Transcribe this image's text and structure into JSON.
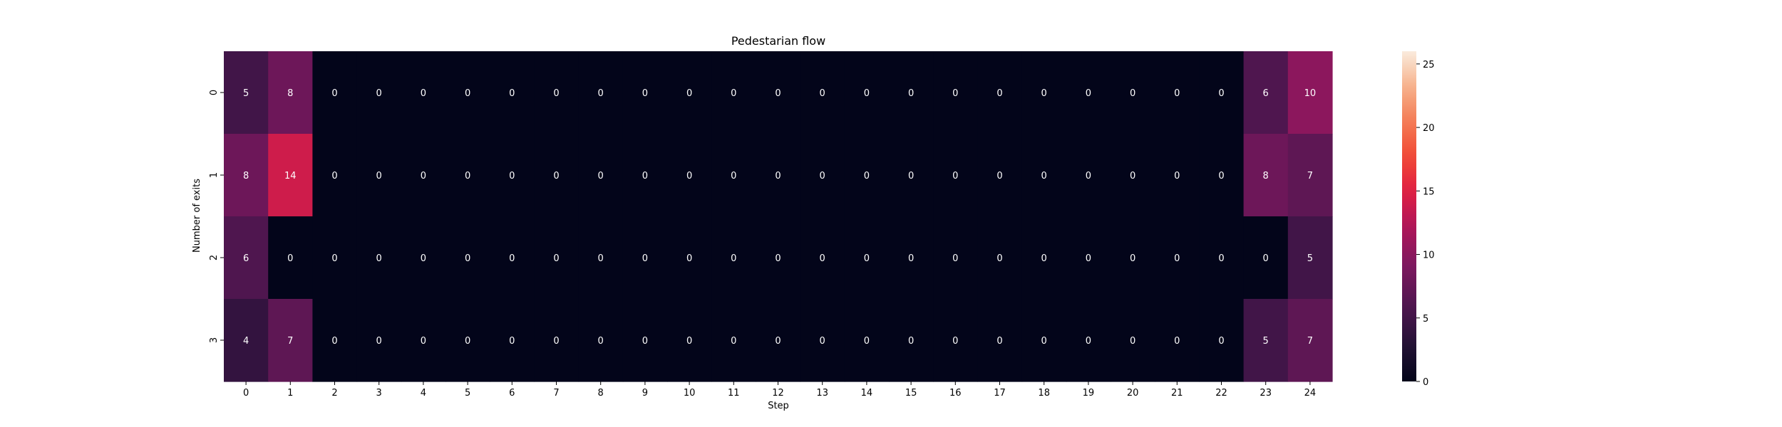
{
  "chart_data": {
    "type": "heatmap",
    "title": "Pedestarian flow",
    "xlabel": "Step",
    "ylabel": "Number of exits",
    "x_categories": [
      "0",
      "1",
      "2",
      "3",
      "4",
      "5",
      "6",
      "7",
      "8",
      "9",
      "10",
      "11",
      "12",
      "13",
      "14",
      "15",
      "16",
      "17",
      "18",
      "19",
      "20",
      "21",
      "22",
      "23",
      "24"
    ],
    "y_categories": [
      "0",
      "1",
      "2",
      "3"
    ],
    "values": [
      [
        5,
        8,
        0,
        0,
        0,
        0,
        0,
        0,
        0,
        0,
        0,
        0,
        0,
        0,
        0,
        0,
        0,
        0,
        0,
        0,
        0,
        0,
        0,
        6,
        10
      ],
      [
        8,
        14,
        0,
        0,
        0,
        0,
        0,
        0,
        0,
        0,
        0,
        0,
        0,
        0,
        0,
        0,
        0,
        0,
        0,
        0,
        0,
        0,
        0,
        8,
        7
      ],
      [
        6,
        0,
        0,
        0,
        0,
        0,
        0,
        0,
        0,
        0,
        0,
        0,
        0,
        0,
        0,
        0,
        0,
        0,
        0,
        0,
        0,
        0,
        0,
        0,
        5
      ],
      [
        4,
        7,
        0,
        0,
        0,
        0,
        0,
        0,
        0,
        0,
        0,
        0,
        0,
        0,
        0,
        0,
        0,
        0,
        0,
        0,
        0,
        0,
        0,
        5,
        7
      ]
    ],
    "colorbar": {
      "vmin": 0,
      "vmax": 26,
      "ticks": [
        "0",
        "5",
        "10",
        "15",
        "20",
        "25"
      ],
      "colormap": "rocket"
    },
    "annotated": true,
    "grid": false
  }
}
